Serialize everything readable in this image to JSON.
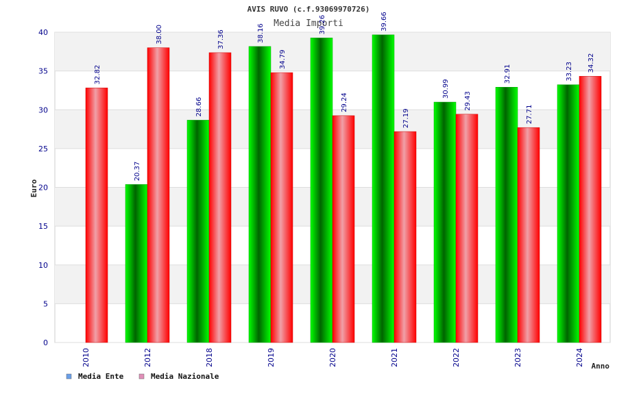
{
  "chart_data": {
    "type": "bar",
    "title": "AVIS RUVO (c.f.93069970726)",
    "subtitle": "Media Importi",
    "xlabel": "Anno",
    "ylabel": "Euro",
    "ylim": [
      0,
      40
    ],
    "yticks": [
      0,
      5,
      10,
      15,
      20,
      25,
      30,
      35,
      40
    ],
    "grid": true,
    "legend_position": "bottom-left",
    "categories": [
      "2010",
      "2012",
      "2018",
      "2019",
      "2020",
      "2021",
      "2022",
      "2023",
      "2024"
    ],
    "series": [
      {
        "name": "Media Ente",
        "color": "#00c800",
        "legend_color": "#6a9fe8",
        "values": [
          null,
          20.37,
          28.66,
          38.16,
          39.26,
          39.66,
          30.99,
          32.91,
          33.23
        ],
        "labels": [
          null,
          "20.37",
          "28.66",
          "38.16",
          "39.26",
          "39.66",
          "30.99",
          "32.91",
          "33.23"
        ]
      },
      {
        "name": "Media Nazionale",
        "color": "#ff0000",
        "legend_color": "#e08fb8",
        "values": [
          32.82,
          38.0,
          37.36,
          34.79,
          29.24,
          27.19,
          29.43,
          27.71,
          34.32
        ],
        "labels": [
          "32.82",
          "38.00",
          "37.36",
          "34.79",
          "29.24",
          "27.19",
          "29.43",
          "27.71",
          "34.32"
        ]
      }
    ]
  }
}
